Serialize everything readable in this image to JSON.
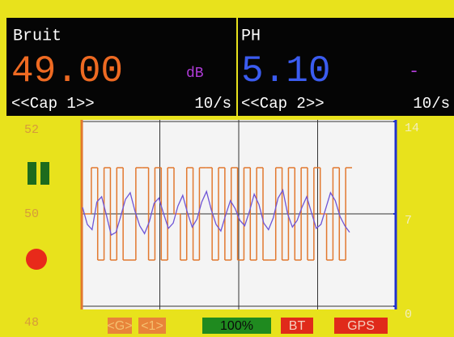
{
  "header": {
    "left": {
      "title": "Bruit",
      "value": "49.00",
      "unit": "dB",
      "source": "<<Cap 1>>",
      "rate": "10/s"
    },
    "right": {
      "title": "PH",
      "value": "5.10",
      "unit": "-",
      "source": "<<Cap 2>>",
      "rate": "10/s"
    }
  },
  "plot": {
    "left_axis": {
      "range": [
        48,
        52
      ],
      "ticks": [
        52,
        50,
        48
      ]
    },
    "right_axis": {
      "range": [
        0,
        14
      ],
      "ticks": [
        14,
        7,
        0
      ]
    },
    "grid": true,
    "series": [
      {
        "axis": "left",
        "color": "#e2782e",
        "values": [
          50,
          51,
          49,
          51,
          49,
          51,
          49,
          49,
          51,
          51,
          49,
          51,
          49,
          51,
          50,
          49,
          51,
          49,
          51,
          51,
          49,
          51,
          49,
          51,
          49,
          51,
          49,
          51,
          49,
          49,
          51,
          49,
          51,
          49,
          51,
          49,
          51,
          50,
          49,
          51,
          49,
          51
        ]
      },
      {
        "axis": "right",
        "color": "#6f55d6",
        "values": [
          7.5,
          6.2,
          5.8,
          7.9,
          8.3,
          6.9,
          5.4,
          5.6,
          6.8,
          8.1,
          8.6,
          7.2,
          6.1,
          5.5,
          6.4,
          7.8,
          8.2,
          7.0,
          5.9,
          6.3,
          7.6,
          8.4,
          7.1,
          6.0,
          6.6,
          7.9,
          8.7,
          7.3,
          6.2,
          5.7,
          6.9,
          8.0,
          7.4,
          6.5,
          6.1,
          7.2,
          8.5,
          7.7,
          6.3,
          5.8,
          6.7,
          8.2,
          8.8,
          7.0,
          6.0,
          6.5,
          7.5,
          8.3,
          7.1,
          5.9,
          6.2,
          7.4,
          8.6,
          8.0,
          6.8,
          6.1,
          5.6
        ]
      }
    ]
  },
  "controls": {
    "buttons": [
      "<G>",
      "<1>",
      "100%",
      "BT",
      "GPS"
    ]
  }
}
